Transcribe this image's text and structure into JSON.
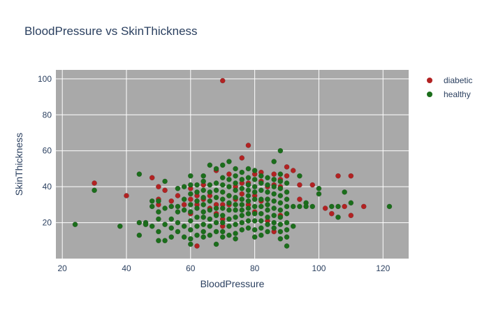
{
  "chart_data": {
    "type": "scatter",
    "title": "BloodPressure vs SkinThickness",
    "xlabel": "BloodPressure",
    "ylabel": "SkinThickness",
    "xlim": [
      18,
      128
    ],
    "ylim": [
      0,
      105
    ],
    "xticks": [
      20,
      40,
      60,
      80,
      100,
      120
    ],
    "yticks": [
      20,
      40,
      60,
      80,
      100
    ],
    "grid": true,
    "legend_position": "top-right",
    "plot_bg_color": "#a9a9a9",
    "series": [
      {
        "name": "diabetic",
        "color": "#b22222",
        "points": [
          [
            30,
            42
          ],
          [
            40,
            35
          ],
          [
            48,
            45
          ],
          [
            50,
            40
          ],
          [
            50,
            33
          ],
          [
            50,
            30
          ],
          [
            52,
            38
          ],
          [
            54,
            32
          ],
          [
            56,
            35
          ],
          [
            58,
            30
          ],
          [
            60,
            39
          ],
          [
            60,
            33
          ],
          [
            60,
            25
          ],
          [
            62,
            35
          ],
          [
            62,
            30
          ],
          [
            62,
            7
          ],
          [
            64,
            33
          ],
          [
            64,
            41
          ],
          [
            66,
            35
          ],
          [
            66,
            28
          ],
          [
            68,
            49
          ],
          [
            68,
            30
          ],
          [
            68,
            25
          ],
          [
            70,
            99
          ],
          [
            70,
            30
          ],
          [
            70,
            22
          ],
          [
            70,
            18
          ],
          [
            72,
            47
          ],
          [
            72,
            35
          ],
          [
            72,
            30
          ],
          [
            74,
            40
          ],
          [
            74,
            33
          ],
          [
            76,
            56
          ],
          [
            76,
            42
          ],
          [
            76,
            36
          ],
          [
            78,
            63
          ],
          [
            78,
            42
          ],
          [
            78,
            30
          ],
          [
            80,
            47
          ],
          [
            80,
            35
          ],
          [
            80,
            26
          ],
          [
            82,
            48
          ],
          [
            82,
            43
          ],
          [
            82,
            32
          ],
          [
            84,
            40
          ],
          [
            84,
            33
          ],
          [
            84,
            21
          ],
          [
            86,
            47
          ],
          [
            86,
            41
          ],
          [
            86,
            15
          ],
          [
            88,
            44
          ],
          [
            88,
            40
          ],
          [
            88,
            24
          ],
          [
            90,
            51
          ],
          [
            90,
            46
          ],
          [
            92,
            49
          ],
          [
            94,
            41
          ],
          [
            94,
            33
          ],
          [
            98,
            41
          ],
          [
            102,
            28
          ],
          [
            104,
            25
          ],
          [
            106,
            46
          ],
          [
            108,
            29
          ],
          [
            110,
            46
          ],
          [
            110,
            24
          ],
          [
            114,
            29
          ]
        ]
      },
      {
        "name": "healthy",
        "color": "#1b6e1b",
        "points": [
          [
            24,
            19
          ],
          [
            30,
            38
          ],
          [
            38,
            18
          ],
          [
            44,
            47
          ],
          [
            44,
            20
          ],
          [
            44,
            13
          ],
          [
            46,
            20
          ],
          [
            46,
            19
          ],
          [
            48,
            32
          ],
          [
            48,
            29
          ],
          [
            48,
            18
          ],
          [
            50,
            32
          ],
          [
            50,
            26
          ],
          [
            50,
            22
          ],
          [
            50,
            15
          ],
          [
            50,
            10
          ],
          [
            52,
            43
          ],
          [
            52,
            28
          ],
          [
            52,
            19
          ],
          [
            52,
            10
          ],
          [
            54,
            29
          ],
          [
            54,
            22
          ],
          [
            54,
            17
          ],
          [
            54,
            12
          ],
          [
            56,
            39
          ],
          [
            56,
            29
          ],
          [
            56,
            26
          ],
          [
            56,
            20
          ],
          [
            56,
            15
          ],
          [
            58,
            40
          ],
          [
            58,
            33
          ],
          [
            58,
            27
          ],
          [
            58,
            18
          ],
          [
            58,
            12
          ],
          [
            60,
            46
          ],
          [
            60,
            41
          ],
          [
            60,
            36
          ],
          [
            60,
            30
          ],
          [
            60,
            26
          ],
          [
            60,
            21
          ],
          [
            60,
            16
          ],
          [
            60,
            11
          ],
          [
            60,
            8
          ],
          [
            62,
            41
          ],
          [
            62,
            37
          ],
          [
            62,
            32
          ],
          [
            62,
            28
          ],
          [
            62,
            23
          ],
          [
            62,
            18
          ],
          [
            62,
            13
          ],
          [
            64,
            46
          ],
          [
            64,
            43
          ],
          [
            64,
            38
          ],
          [
            64,
            34
          ],
          [
            64,
            30
          ],
          [
            64,
            26
          ],
          [
            64,
            23
          ],
          [
            64,
            19
          ],
          [
            64,
            15
          ],
          [
            64,
            12
          ],
          [
            66,
            52
          ],
          [
            66,
            41
          ],
          [
            66,
            37
          ],
          [
            66,
            32
          ],
          [
            66,
            27
          ],
          [
            66,
            22
          ],
          [
            66,
            18
          ],
          [
            66,
            13
          ],
          [
            68,
            50
          ],
          [
            68,
            42
          ],
          [
            68,
            38
          ],
          [
            68,
            34
          ],
          [
            68,
            28
          ],
          [
            68,
            24
          ],
          [
            68,
            20
          ],
          [
            68,
            15
          ],
          [
            68,
            8
          ],
          [
            70,
            52
          ],
          [
            70,
            45
          ],
          [
            70,
            41
          ],
          [
            70,
            37
          ],
          [
            70,
            33
          ],
          [
            70,
            28
          ],
          [
            70,
            24
          ],
          [
            70,
            20
          ],
          [
            70,
            15
          ],
          [
            70,
            12
          ],
          [
            72,
            54
          ],
          [
            72,
            44
          ],
          [
            72,
            40
          ],
          [
            72,
            35
          ],
          [
            72,
            31
          ],
          [
            72,
            27
          ],
          [
            72,
            22
          ],
          [
            72,
            18
          ],
          [
            72,
            13
          ],
          [
            74,
            50
          ],
          [
            74,
            46
          ],
          [
            74,
            42
          ],
          [
            74,
            38
          ],
          [
            74,
            34
          ],
          [
            74,
            30
          ],
          [
            74,
            27
          ],
          [
            74,
            23
          ],
          [
            74,
            19
          ],
          [
            74,
            14
          ],
          [
            74,
            11
          ],
          [
            76,
            48
          ],
          [
            76,
            44
          ],
          [
            76,
            39
          ],
          [
            76,
            33
          ],
          [
            76,
            30
          ],
          [
            76,
            27
          ],
          [
            76,
            24
          ],
          [
            76,
            20
          ],
          [
            76,
            16
          ],
          [
            78,
            50
          ],
          [
            78,
            45
          ],
          [
            78,
            41
          ],
          [
            78,
            38
          ],
          [
            78,
            35
          ],
          [
            78,
            32
          ],
          [
            78,
            28
          ],
          [
            78,
            25
          ],
          [
            78,
            21
          ],
          [
            78,
            17
          ],
          [
            80,
            49
          ],
          [
            80,
            44
          ],
          [
            80,
            40
          ],
          [
            80,
            37
          ],
          [
            80,
            33
          ],
          [
            80,
            29
          ],
          [
            80,
            25
          ],
          [
            80,
            21
          ],
          [
            80,
            16
          ],
          [
            80,
            12
          ],
          [
            82,
            46
          ],
          [
            82,
            42
          ],
          [
            82,
            38
          ],
          [
            82,
            33
          ],
          [
            82,
            29
          ],
          [
            82,
            25
          ],
          [
            82,
            21
          ],
          [
            82,
            17
          ],
          [
            82,
            13
          ],
          [
            84,
            45
          ],
          [
            84,
            41
          ],
          [
            84,
            37
          ],
          [
            84,
            33
          ],
          [
            84,
            30
          ],
          [
            84,
            27
          ],
          [
            84,
            23
          ],
          [
            84,
            19
          ],
          [
            84,
            15
          ],
          [
            86,
            54
          ],
          [
            86,
            44
          ],
          [
            86,
            40
          ],
          [
            86,
            36
          ],
          [
            86,
            32
          ],
          [
            86,
            28
          ],
          [
            86,
            24
          ],
          [
            86,
            20
          ],
          [
            86,
            17
          ],
          [
            88,
            60
          ],
          [
            88,
            47
          ],
          [
            88,
            43
          ],
          [
            88,
            39
          ],
          [
            88,
            35
          ],
          [
            88,
            31
          ],
          [
            88,
            27
          ],
          [
            88,
            23
          ],
          [
            88,
            19
          ],
          [
            88,
            15
          ],
          [
            88,
            11
          ],
          [
            90,
            42
          ],
          [
            90,
            37
          ],
          [
            90,
            33
          ],
          [
            90,
            29
          ],
          [
            90,
            25
          ],
          [
            90,
            20
          ],
          [
            90,
            16
          ],
          [
            90,
            12
          ],
          [
            90,
            7
          ],
          [
            92,
            29
          ],
          [
            92,
            18
          ],
          [
            94,
            46
          ],
          [
            94,
            29
          ],
          [
            96,
            31
          ],
          [
            96,
            29
          ],
          [
            98,
            29
          ],
          [
            100,
            39
          ],
          [
            100,
            36
          ],
          [
            104,
            29
          ],
          [
            106,
            29
          ],
          [
            106,
            23
          ],
          [
            108,
            37
          ],
          [
            110,
            31
          ],
          [
            122,
            29
          ]
        ]
      }
    ]
  }
}
